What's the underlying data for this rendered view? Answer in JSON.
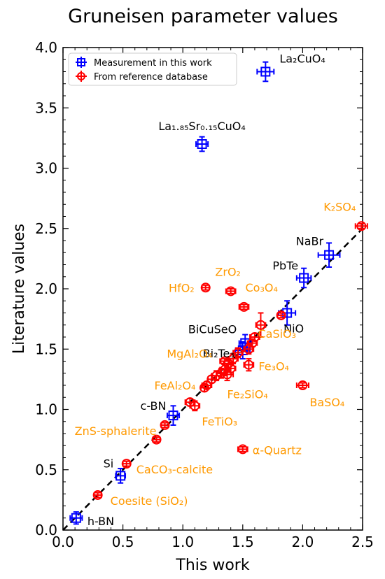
{
  "chart_data": {
    "type": "scatter",
    "title": "Gruneisen parameter values",
    "xlabel": "This work",
    "ylabel": "Literature values",
    "xlim": [
      0.0,
      2.5
    ],
    "ylim": [
      0.0,
      4.0
    ],
    "x_ticks": [
      "0.0",
      "0.5",
      "1.0",
      "1.5",
      "2.0",
      "2.5"
    ],
    "y_ticks": [
      "0.0",
      "0.5",
      "1.0",
      "1.5",
      "2.0",
      "2.5",
      "3.0",
      "3.5",
      "4.0"
    ],
    "legend_position": "top-left",
    "identity_line": true,
    "series": [
      {
        "name": "Measurement in this work",
        "color": "#0000ff",
        "marker": "square",
        "label_color": "#000000",
        "points": [
          {
            "label": "La₂CuO₄",
            "x": 1.69,
            "y": 3.8,
            "xerr": 0.07,
            "yerr": 0.08
          },
          {
            "label": "La₁.₈₅Sr₀.₁₅CuO₄",
            "x": 1.16,
            "y": 3.2,
            "xerr": 0.05,
            "yerr": 0.06
          },
          {
            "label": "NaBr",
            "x": 2.22,
            "y": 2.28,
            "xerr": 0.09,
            "yerr": 0.1
          },
          {
            "label": "PbTe",
            "x": 2.01,
            "y": 2.09,
            "xerr": 0.06,
            "yerr": 0.08
          },
          {
            "label": "NiO",
            "x": 1.87,
            "y": 1.8,
            "xerr": 0.07,
            "yerr": 0.1
          },
          {
            "label": "BiCuSeO",
            "x": 1.52,
            "y": 1.55,
            "xerr": 0.05,
            "yerr": 0.07
          },
          {
            "label": "Bi₂Te₃",
            "x": 1.5,
            "y": 1.49,
            "xerr": 0.06,
            "yerr": 0.07
          },
          {
            "label": "c-BN",
            "x": 0.92,
            "y": 0.95,
            "xerr": 0.05,
            "yerr": 0.08
          },
          {
            "label": "Si",
            "x": 0.48,
            "y": 0.45,
            "xerr": 0.04,
            "yerr": 0.06
          },
          {
            "label": "h-BN",
            "x": 0.11,
            "y": 0.1,
            "xerr": 0.05,
            "yerr": 0.05
          }
        ]
      },
      {
        "name": "From reference database",
        "color": "#ff0000",
        "marker": "circle",
        "label_color": "#ff9900",
        "points": [
          {
            "label": "K₂SO₄",
            "x": 2.49,
            "y": 2.52,
            "xerr": 0.05,
            "yerr": 0.02
          },
          {
            "label": "ZrO₂",
            "x": 1.4,
            "y": 1.98,
            "xerr": 0.04,
            "yerr": 0.02
          },
          {
            "label": "HfO₂",
            "x": 1.19,
            "y": 2.01,
            "xerr": 0.03,
            "yerr": 0.02
          },
          {
            "label": "Co₃O₄",
            "x": 1.51,
            "y": 1.85,
            "xerr": 0.04,
            "yerr": 0.02
          },
          {
            "label": "CaSiO₃",
            "x": 1.65,
            "y": 1.7,
            "xerr": 0.04,
            "yerr": 0.1
          },
          {
            "label": "Fe₃O₄",
            "x": 1.55,
            "y": 1.37,
            "xerr": 0.04,
            "yerr": 0.05
          },
          {
            "label": "MgAl₂O₄",
            "x": 1.35,
            "y": 1.4,
            "xerr": 0.04,
            "yerr": 0.02
          },
          {
            "label": "FeAl₂O₄",
            "x": 1.2,
            "y": 1.2,
            "xerr": 0.04,
            "yerr": 0.03
          },
          {
            "label": "Fe₂SiO₄",
            "x": 1.37,
            "y": 1.29,
            "xerr": 0.05,
            "yerr": 0.05
          },
          {
            "label": "BaSO₄",
            "x": 2.0,
            "y": 1.2,
            "xerr": 0.05,
            "yerr": 0.02
          },
          {
            "label": "FeTiO₃",
            "x": 1.1,
            "y": 1.03,
            "xerr": 0.04,
            "yerr": 0.04
          },
          {
            "label": "ZnS-sphalerite",
            "x": 0.85,
            "y": 0.87,
            "xerr": 0.03,
            "yerr": 0.02
          },
          {
            "label": "CaCO₃-calcite",
            "x": 0.53,
            "y": 0.55,
            "xerr": 0.03,
            "yerr": 0.02
          },
          {
            "label": "α-Quartz",
            "x": 1.5,
            "y": 0.67,
            "xerr": 0.04,
            "yerr": 0.02
          },
          {
            "label": "Coesite (SiO₂)",
            "x": 0.29,
            "y": 0.29,
            "xerr": 0.03,
            "yerr": 0.02
          },
          {
            "label": "",
            "x": 0.78,
            "y": 0.75,
            "xerr": 0.03,
            "yerr": 0.02
          },
          {
            "label": "",
            "x": 1.06,
            "y": 1.06,
            "xerr": 0.04,
            "yerr": 0.03
          },
          {
            "label": "",
            "x": 1.82,
            "y": 1.78,
            "xerr": 0.03,
            "yerr": 0.02
          },
          {
            "label": "",
            "x": 1.28,
            "y": 1.28,
            "xerr": 0.04,
            "yerr": 0.04
          },
          {
            "label": "",
            "x": 1.32,
            "y": 1.3,
            "xerr": 0.04,
            "yerr": 0.04
          },
          {
            "label": "",
            "x": 1.24,
            "y": 1.25,
            "xerr": 0.03,
            "yerr": 0.03
          },
          {
            "label": "",
            "x": 1.4,
            "y": 1.34,
            "xerr": 0.04,
            "yerr": 0.05
          },
          {
            "label": "",
            "x": 1.42,
            "y": 1.42,
            "xerr": 0.04,
            "yerr": 0.04
          },
          {
            "label": "",
            "x": 1.46,
            "y": 1.47,
            "xerr": 0.04,
            "yerr": 0.04
          },
          {
            "label": "",
            "x": 1.38,
            "y": 1.38,
            "xerr": 0.04,
            "yerr": 0.03
          },
          {
            "label": "",
            "x": 1.58,
            "y": 1.55,
            "xerr": 0.04,
            "yerr": 0.03
          },
          {
            "label": "",
            "x": 1.6,
            "y": 1.6,
            "xerr": 0.04,
            "yerr": 0.03
          },
          {
            "label": "",
            "x": 1.55,
            "y": 1.5,
            "xerr": 0.04,
            "yerr": 0.04
          },
          {
            "label": "",
            "x": 1.35,
            "y": 1.33,
            "xerr": 0.04,
            "yerr": 0.05
          },
          {
            "label": "",
            "x": 1.18,
            "y": 1.18,
            "xerr": 0.03,
            "yerr": 0.03
          }
        ]
      }
    ]
  }
}
